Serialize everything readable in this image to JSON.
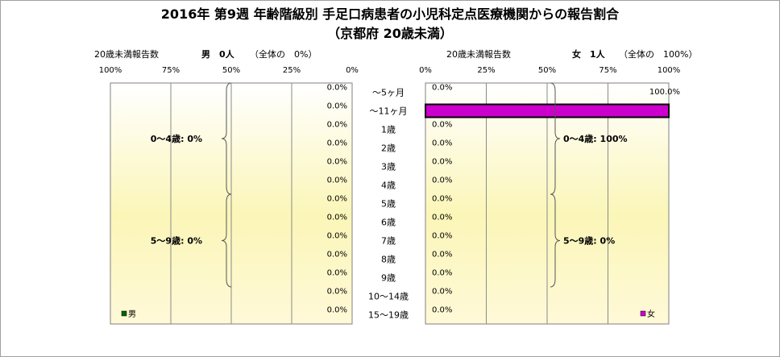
{
  "chart_data": {
    "type": "bar",
    "orientation": "horizontal-butterfly",
    "title": "2016年 第9週 年齢階級別 手足口病患者の小児科定点医療機関からの報告割合",
    "subtitle": "（京都府 20歳未満）",
    "categories": [
      "～5ヶ月",
      "～11ヶ月",
      "1歳",
      "2歳",
      "3歳",
      "4歳",
      "5歳",
      "6歳",
      "7歳",
      "8歳",
      "9歳",
      "10～14歳",
      "15～19歳"
    ],
    "xlim": [
      0,
      100
    ],
    "ticks": [
      "0%",
      "25%",
      "50%",
      "75%",
      "100%"
    ],
    "grid": true,
    "series": [
      {
        "name": "男",
        "header_label": "20歳未満報告数",
        "header_count": "男　0人",
        "header_share": "（全体の　0%）",
        "color": "#006600",
        "values": [
          0,
          0,
          0,
          0,
          0,
          0,
          0,
          0,
          0,
          0,
          0,
          0,
          0
        ],
        "value_labels": [
          "0.0%",
          "0.0%",
          "0.0%",
          "0.0%",
          "0.0%",
          "0.0%",
          "0.0%",
          "0.0%",
          "0.0%",
          "0.0%",
          "0.0%",
          "0.0%",
          "0.0%"
        ],
        "groups": [
          {
            "label": "0～4歳: 0%",
            "from": 0,
            "to": 5
          },
          {
            "label": "5～9歳: 0%",
            "from": 6,
            "to": 10
          }
        ]
      },
      {
        "name": "女",
        "header_label": "20歳未満報告数",
        "header_count": "女　1人",
        "header_share": "（全体の　100%）",
        "color": "#cc00cc",
        "values": [
          0,
          100,
          0,
          0,
          0,
          0,
          0,
          0,
          0,
          0,
          0,
          0,
          0
        ],
        "value_labels": [
          "0.0%",
          "100.0%",
          "0.0%",
          "0.0%",
          "0.0%",
          "0.0%",
          "0.0%",
          "0.0%",
          "0.0%",
          "0.0%",
          "0.0%",
          "0.0%",
          "0.0%"
        ],
        "groups": [
          {
            "label": "0～4歳: 100%",
            "from": 0,
            "to": 5
          },
          {
            "label": "5～9歳: 0%",
            "from": 6,
            "to": 10
          }
        ]
      }
    ]
  }
}
